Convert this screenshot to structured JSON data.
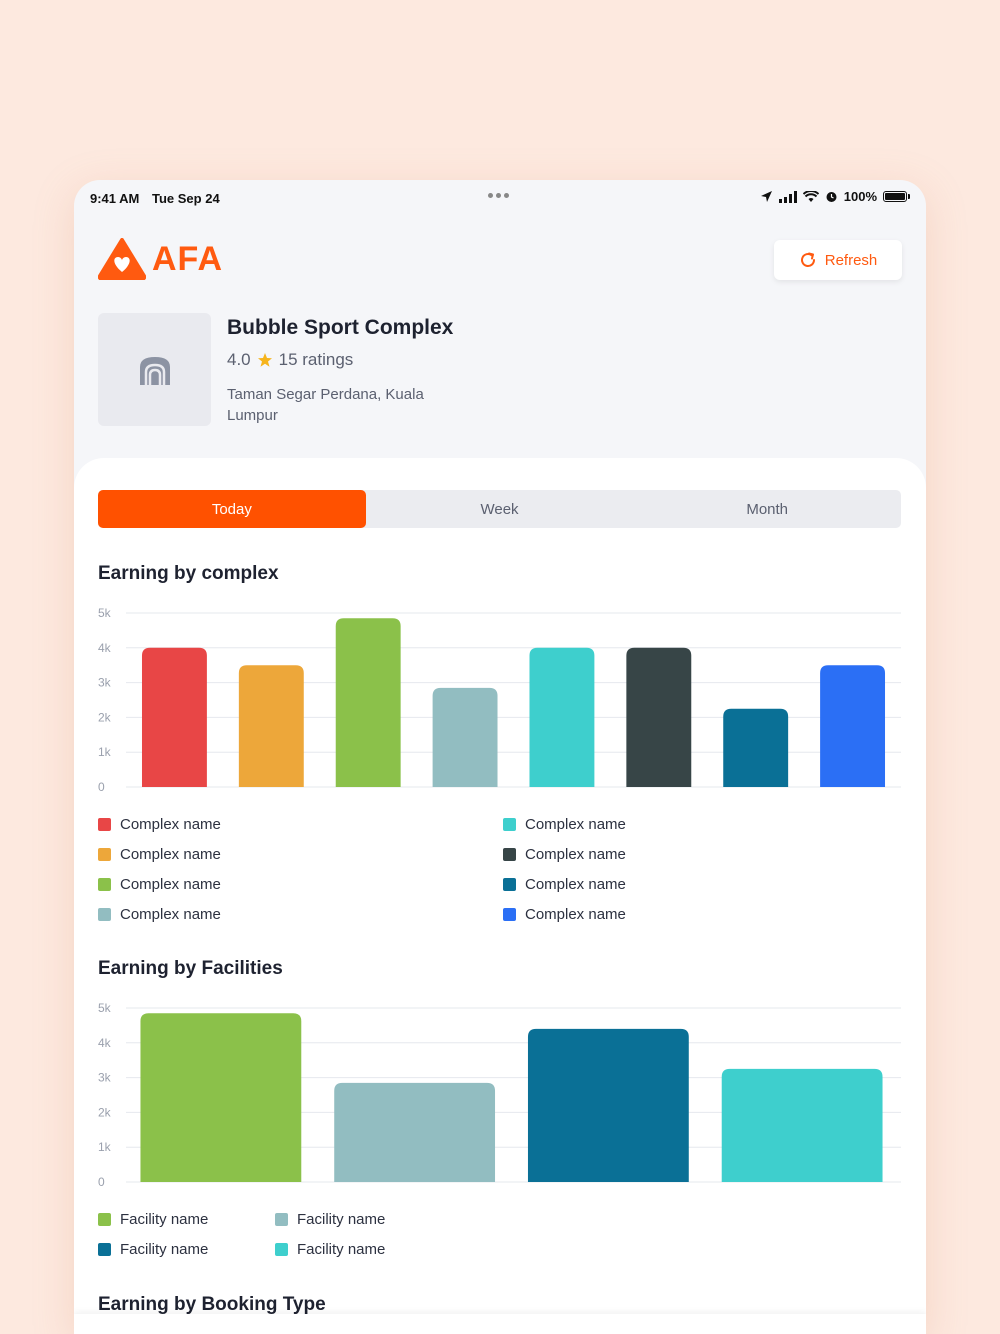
{
  "status_bar": {
    "time": "9:41 AM",
    "date": "Tue Sep 24",
    "battery": "100%"
  },
  "brand": {
    "name": "AFA",
    "color": "#ff5a10"
  },
  "header": {
    "refresh_label": "Refresh",
    "refresh_icon": "refresh-icon"
  },
  "venue": {
    "name": "Bubble Sport Complex",
    "rating": "4.0",
    "ratings_count": "15 ratings",
    "address": "Taman Segar Perdana, Kuala Lumpur",
    "thumb_icon": "stadium-icon"
  },
  "tabs": [
    {
      "label": "Today",
      "active": true
    },
    {
      "label": "Week",
      "active": false
    },
    {
      "label": "Month",
      "active": false
    }
  ],
  "sections": {
    "complex_title": "Earning by complex",
    "facilities_title": "Earning by Facilities",
    "booking_type_title": "Earning by Booking Type"
  },
  "chart_data": [
    {
      "type": "bar",
      "title": "Earning by complex",
      "ylim": [
        0,
        5000
      ],
      "y_ticks": [
        "0",
        "1k",
        "2k",
        "3k",
        "4k",
        "5k"
      ],
      "grid": true,
      "legend_placement": "bottom",
      "categories": [
        "Complex name",
        "Complex name",
        "Complex name",
        "Complex name",
        "Complex name",
        "Complex name",
        "Complex name",
        "Complex name"
      ],
      "values": [
        4000,
        3500,
        4850,
        2850,
        4000,
        4000,
        2250,
        3500
      ],
      "colors": [
        "#e84646",
        "#eda73a",
        "#8bc14a",
        "#92bdc1",
        "#3ecfcd",
        "#374547",
        "#0a7096",
        "#2b6ff5"
      ]
    },
    {
      "type": "bar",
      "title": "Earning by Facilities",
      "ylim": [
        0,
        5000
      ],
      "y_ticks": [
        "0",
        "1k",
        "2k",
        "3k",
        "4k",
        "5k"
      ],
      "grid": true,
      "legend_placement": "bottom",
      "categories": [
        "Facility name",
        "Facility name",
        "Facility name",
        "Facility name"
      ],
      "values": [
        4850,
        2850,
        4400,
        3250
      ],
      "colors": [
        "#8bc14a",
        "#92bdc1",
        "#0a7096",
        "#3ecfcd"
      ]
    }
  ]
}
